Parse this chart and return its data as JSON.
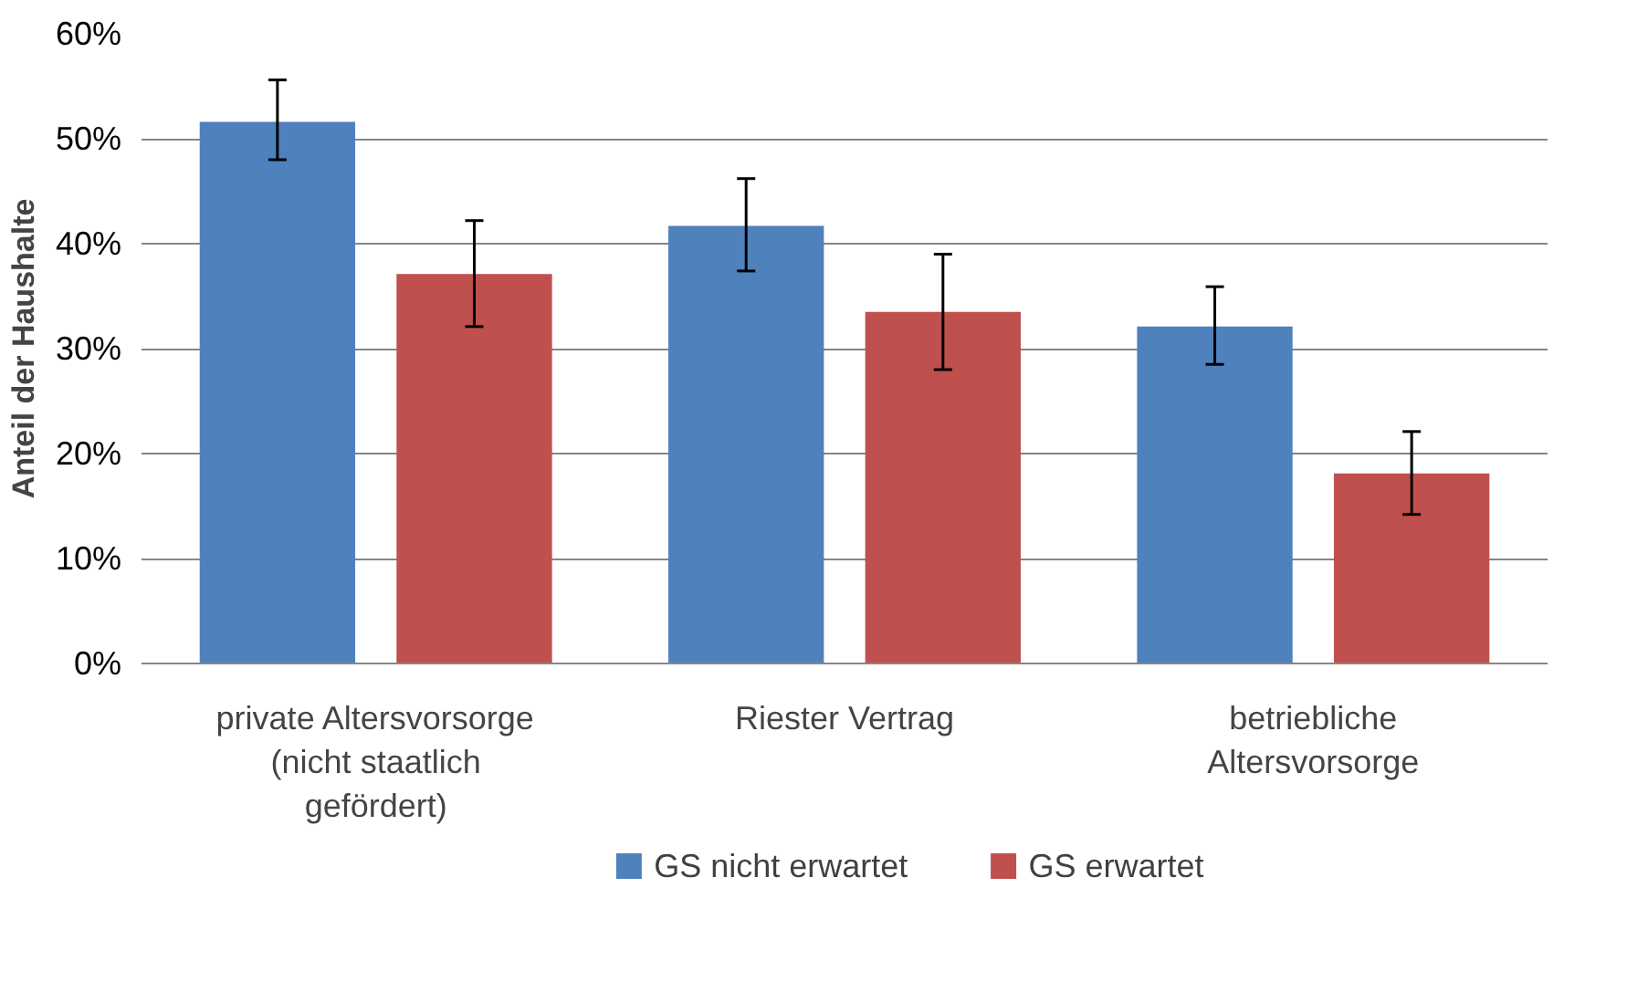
{
  "chart_data": {
    "type": "bar",
    "ylabel": "Anteil der Haushalte",
    "categories": [
      "private Altersvorsorge (nicht staatlich gefördert)",
      "Riester Vertrag",
      "betriebliche Altersvorsorge"
    ],
    "series": [
      {
        "name": "GS nicht erwartet",
        "color": "#4f81bd",
        "values": [
          51.6,
          41.7,
          32.1
        ],
        "errors": [
          [
            48.0,
            55.6
          ],
          [
            37.4,
            46.2
          ],
          [
            28.5,
            35.9
          ]
        ]
      },
      {
        "name": "GS erwartet",
        "color": "#c0504d",
        "values": [
          37.1,
          33.5,
          18.1
        ],
        "errors": [
          [
            32.1,
            42.2
          ],
          [
            28.0,
            39.0
          ],
          [
            14.2,
            22.1
          ]
        ]
      }
    ],
    "ylim": [
      0,
      60
    ],
    "yticks": [
      {
        "value": 0,
        "label": "0%"
      },
      {
        "value": 10,
        "label": "10%"
      },
      {
        "value": 20,
        "label": "20%"
      },
      {
        "value": 30,
        "label": "30%"
      },
      {
        "value": 40,
        "label": "40%"
      },
      {
        "value": 50,
        "label": "50%"
      },
      {
        "value": 60,
        "label": "60%"
      }
    ],
    "grid": "y",
    "legend": "bottom"
  }
}
